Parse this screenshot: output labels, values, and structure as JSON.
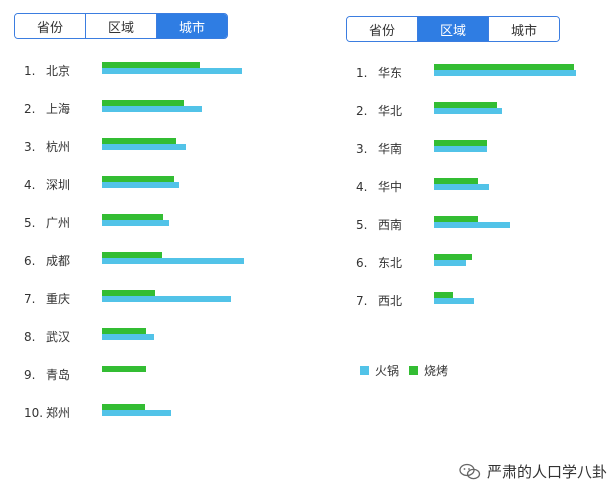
{
  "left_panel": {
    "tabs": [
      {
        "label": "省份",
        "active": false
      },
      {
        "label": "区域",
        "active": false
      },
      {
        "label": "城市",
        "active": true
      }
    ]
  },
  "right_panel": {
    "tabs": [
      {
        "label": "省份",
        "active": false
      },
      {
        "label": "区域",
        "active": true
      },
      {
        "label": "城市",
        "active": false
      }
    ]
  },
  "legend": [
    {
      "label": "火锅",
      "color": "#52c3e8"
    },
    {
      "label": "烧烤",
      "color": "#33bd33"
    }
  ],
  "watermark": {
    "text": "严肃的人口学八卦"
  },
  "colors": {
    "accent": "#2f7de3",
    "hotpot": "#52c3e8",
    "bbq": "#33bd33"
  },
  "chart_data": [
    {
      "type": "bar",
      "orientation": "horizontal",
      "categories": [
        "北京",
        "上海",
        "杭州",
        "深圳",
        "广州",
        "成都",
        "重庆",
        "武汉",
        "青岛",
        "郑州"
      ],
      "ranks": [
        "1.",
        "2.",
        "3.",
        "4.",
        "5.",
        "6.",
        "7.",
        "8.",
        "9.",
        "10."
      ],
      "series": [
        {
          "name": "烧烤",
          "color": "#33bd33",
          "values": [
            98,
            82,
            74,
            72,
            61,
            60,
            53,
            44,
            44,
            43
          ]
        },
        {
          "name": "火锅",
          "color": "#52c3e8",
          "values": [
            140,
            100,
            84,
            77,
            67,
            142,
            129,
            52,
            0,
            69
          ]
        }
      ],
      "xlim": [
        0,
        150
      ]
    },
    {
      "type": "bar",
      "orientation": "horizontal",
      "categories": [
        "华东",
        "华北",
        "华南",
        "华中",
        "西南",
        "东北",
        "西北"
      ],
      "ranks": [
        "1.",
        "2.",
        "3.",
        "4.",
        "5.",
        "6.",
        "7."
      ],
      "series": [
        {
          "name": "烧烤",
          "color": "#33bd33",
          "values": [
            140,
            63,
            53,
            44,
            44,
            38,
            19
          ]
        },
        {
          "name": "火锅",
          "color": "#52c3e8",
          "values": [
            142,
            68,
            53,
            55,
            76,
            32,
            40
          ]
        }
      ],
      "xlim": [
        0,
        150
      ]
    }
  ]
}
